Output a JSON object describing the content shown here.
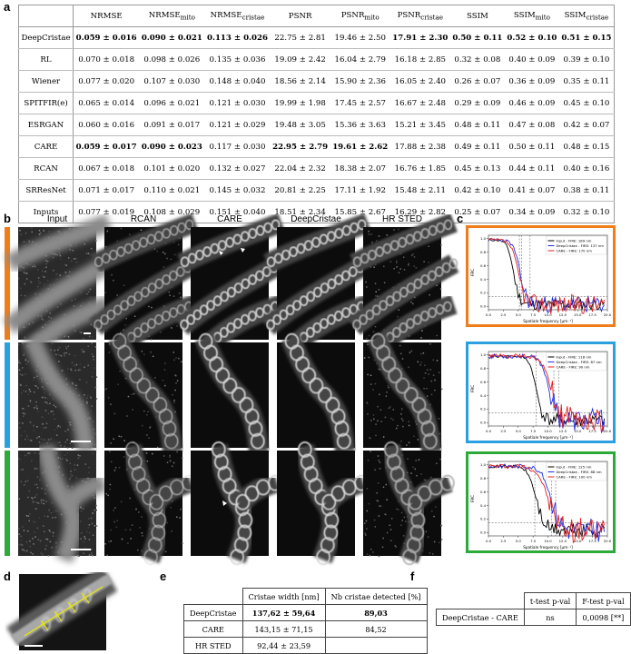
{
  "letters": {
    "a": "a",
    "b": "b",
    "c": "c",
    "d": "d",
    "e": "e",
    "f": "f"
  },
  "tableA": {
    "header": [
      "",
      "NRMSE",
      "NRMSE",
      "NRMSE",
      "PSNR",
      "PSNR",
      "PSNR",
      "SSIM",
      "SSIM",
      "SSIM"
    ],
    "subs": [
      "",
      "",
      "mito",
      "cristae",
      "",
      "mito",
      "cristae",
      "",
      "mito",
      "cristae"
    ],
    "rows": [
      {
        "name": "DeepCristae",
        "cells": [
          "0.059 ± 0.016",
          "0.090 ± 0.021",
          "0.113 ± 0.026",
          "22.75 ± 2.81",
          "19.46 ± 2.50",
          "17.91 ± 2.30",
          "0.50 ± 0.11",
          "0.52 ± 0.10",
          "0.51 ± 0.15"
        ],
        "bold": [
          0,
          1,
          2,
          5,
          6,
          7,
          8
        ]
      },
      {
        "name": "RL",
        "cells": [
          "0.070 ± 0.018",
          "0.098 ± 0.026",
          "0.135 ± 0.036",
          "19.09 ± 2.42",
          "16.04 ± 2.79",
          "16.18 ± 2.85",
          "0.32 ± 0.08",
          "0.40 ± 0.09",
          "0.39 ± 0.10"
        ],
        "bold": []
      },
      {
        "name": "Wiener",
        "cells": [
          "0.077 ± 0.020",
          "0.107 ± 0.030",
          "0.148 ± 0.040",
          "18.56 ± 2.14",
          "15.90 ± 2.36",
          "16.05 ± 2.40",
          "0.26 ± 0.07",
          "0.36 ± 0.09",
          "0.35 ± 0.11"
        ],
        "bold": []
      },
      {
        "name": "SPITFIR(e)",
        "cells": [
          "0.065 ± 0.014",
          "0.096 ± 0.021",
          "0.121 ± 0.030",
          "19.99 ± 1.98",
          "17.45 ± 2.57",
          "16.67 ± 2.48",
          "0.29 ± 0.09",
          "0.46 ± 0.09",
          "0.45 ± 0.10"
        ],
        "bold": []
      },
      {
        "name": "ESRGAN",
        "cells": [
          "0.060 ± 0.016",
          "0.091 ± 0.017",
          "0.121 ± 0.029",
          "19.48 ± 3.05",
          "15.36 ± 3.63",
          "15.21 ± 3.45",
          "0.48 ± 0.11",
          "0.47 ± 0.08",
          "0.42 ± 0.07"
        ],
        "bold": []
      },
      {
        "name": "CARE",
        "cells": [
          "0.059 ± 0.017",
          "0.090 ± 0.023",
          "0.117 ± 0.030",
          "22.95 ± 2.79",
          "19.61 ± 2.62",
          "17.88 ± 2.38",
          "0.49 ± 0.11",
          "0.50 ± 0.11",
          "0.48 ± 0.15"
        ],
        "bold": [
          0,
          1,
          3,
          4
        ]
      },
      {
        "name": "RCAN",
        "cells": [
          "0.067 ± 0.018",
          "0.101 ± 0.020",
          "0.132 ± 0.027",
          "22.04 ± 2.32",
          "18.38 ± 2.07",
          "16.76 ± 1.85",
          "0.45 ± 0.13",
          "0.44 ± 0.11",
          "0.40 ± 0.16"
        ],
        "bold": []
      },
      {
        "name": "SRResNet",
        "cells": [
          "0.071 ± 0.017",
          "0.110 ± 0.021",
          "0.145 ± 0.032",
          "20.81 ± 2.25",
          "17.11 ± 1.92",
          "15.48 ± 2.11",
          "0.42 ± 0.10",
          "0.41 ± 0.07",
          "0.38 ± 0.11"
        ],
        "bold": []
      },
      {
        "name": "Inputs",
        "cells": [
          "0.077 ± 0.019",
          "0.108 ± 0.029",
          "0.151 ± 0.040",
          "18.51 ± 2.34",
          "15.85 ± 2.67",
          "16.29 ± 2.82",
          "0.25 ± 0.07",
          "0.34 ± 0.09",
          "0.32 ± 0.10"
        ],
        "bold": []
      }
    ]
  },
  "panelB": {
    "columns": [
      "Input",
      "RCAN",
      "CARE",
      "DeepCristae",
      "HR STED"
    ],
    "rowColors": [
      "#f07d1a",
      "#2aa0e0",
      "#2caa3a"
    ]
  },
  "panelC": {
    "plots": [
      {
        "color": "#f07d1a",
        "legend": [
          "Input - FIRE: 189 nm",
          "DeepCristae - FIRE: 137 nm",
          "CARE - FIRE: 170 nm"
        ],
        "xlabel": "Spatiale frequency [μm⁻¹]",
        "ylabel": "FRC",
        "xticks": [
          "0.0",
          "2.5",
          "5.0",
          "7.5",
          "10.0",
          "12.5",
          "15.0",
          "17.5",
          "20.0"
        ],
        "yticks": [
          "0.0",
          "0.2",
          "0.4",
          "0.6",
          "0.8",
          "1.0"
        ]
      },
      {
        "color": "#2aa0e0",
        "legend": [
          "Input - FIRE: 118 nm",
          "DeepCristae - FIRE: 87 nm",
          "CARE - FIRE: 90 nm"
        ],
        "xlabel": "Spatiale frequency [μm⁻¹]",
        "ylabel": "FRC",
        "xticks": [
          "0.0",
          "2.5",
          "5.0",
          "7.5",
          "10.0",
          "12.5",
          "15.0",
          "17.5",
          "20.0"
        ],
        "yticks": [
          "0.0",
          "0.2",
          "0.4",
          "0.6",
          "0.8",
          "1.0"
        ]
      },
      {
        "color": "#2caa3a",
        "legend": [
          "Input - FIRE: 125 nm",
          "DeepCristae - FIRE: 88 nm",
          "CARE - FIRE: 100 nm"
        ],
        "xlabel": "Spatiale frequency [μm⁻¹]",
        "ylabel": "FRC",
        "xticks": [
          "0.0",
          "2.5",
          "5.0",
          "7.5",
          "10.0",
          "12.5",
          "15.0",
          "17.5",
          "20.0"
        ],
        "yticks": [
          "0.0",
          "0.2",
          "0.4",
          "0.6",
          "0.8",
          "1.0"
        ]
      }
    ],
    "seriesColors": {
      "input": "#000000",
      "deepcristae": "#2030e0",
      "care": "#e02020"
    }
  },
  "tableE": {
    "headers": [
      "Cristae width [nm]",
      "Nb cristae detected [%]"
    ],
    "rows": [
      {
        "name": "DeepCristae",
        "width": "137,62 ± 59,64",
        "nb": "89,03"
      },
      {
        "name": "CARE",
        "width": "143,15 ± 71,15",
        "nb": "84,52"
      },
      {
        "name": "HR STED",
        "width": "92,44 ± 23,59",
        "nb": ""
      }
    ]
  },
  "tableF": {
    "headers": [
      "t-test p-val",
      "F-test p-val"
    ],
    "row": {
      "name": "DeepCristae - CARE",
      "t": "ns",
      "f": "0,0098 [**]"
    }
  }
}
